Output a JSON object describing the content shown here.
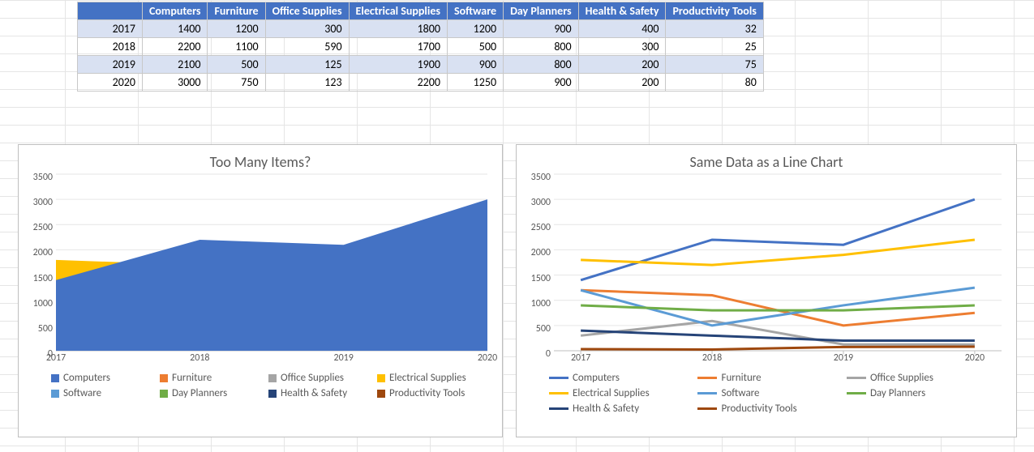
{
  "table": {
    "headers": [
      "",
      "Computers",
      "Furniture",
      "Office Supplies",
      "Electrical Supplies",
      "Software",
      "Day Planners",
      "Health & Safety",
      "Productivity Tools"
    ],
    "years": [
      "2017",
      "2018",
      "2019",
      "2020"
    ],
    "rows": [
      [
        1400,
        1200,
        300,
        1800,
        1200,
        900,
        400,
        32
      ],
      [
        2200,
        1100,
        590,
        1700,
        500,
        800,
        300,
        25
      ],
      [
        2100,
        500,
        125,
        1900,
        900,
        800,
        200,
        75
      ],
      [
        3000,
        750,
        123,
        2200,
        1250,
        900,
        200,
        80
      ]
    ],
    "header_bg": "#4472c4",
    "header_fg": "#ffffff",
    "band_bg": "#d9e1f2",
    "border": "#c8c8c8"
  },
  "series": {
    "names": [
      "Computers",
      "Furniture",
      "Office Supplies",
      "Electrical Supplies",
      "Software",
      "Day Planners",
      "Health & Safety",
      "Productivity Tools"
    ],
    "colors": [
      "#4472c4",
      "#ed7d31",
      "#a5a5a5",
      "#ffc000",
      "#5b9bd5",
      "#70ad47",
      "#264478",
      "#9e480e"
    ]
  },
  "left_chart": {
    "type": "area",
    "title": "Too Many Items?",
    "ylim": [
      0,
      3500
    ],
    "ytick_step": 500,
    "x_categories": [
      "2017",
      "2018",
      "2019",
      "2020"
    ],
    "title_fontsize": 18,
    "label_fontsize": 12,
    "background_color": "#ffffff",
    "grid_color": "#e6e6e6"
  },
  "right_chart": {
    "type": "line",
    "title": "Same Data as a Line Chart",
    "ylim": [
      0,
      3500
    ],
    "ytick_step": 500,
    "x_categories": [
      "2017",
      "2018",
      "2019",
      "2020"
    ],
    "line_width": 3,
    "title_fontsize": 18,
    "label_fontsize": 12,
    "background_color": "#ffffff",
    "grid_color": "#e6e6e6"
  }
}
